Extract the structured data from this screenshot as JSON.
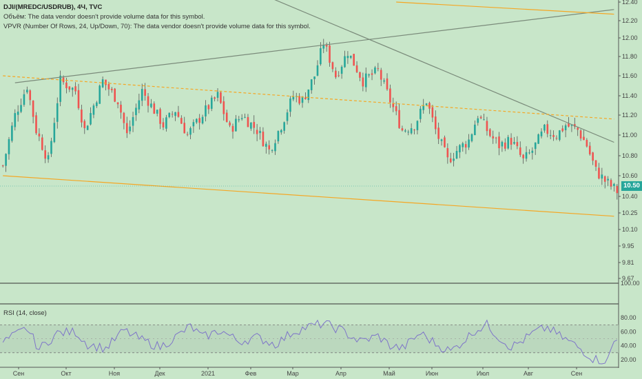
{
  "legend": {
    "title": "DJI/(MREDC/USDRUB), 4Ч, TVC",
    "volume": "Объём: The data vendor doesn't provide volume data for this symbol.",
    "vpvr": "VPVR (Number Of Rows, 24, Up/Down, 70): The data vendor doesn't provide volume data for this symbol."
  },
  "rsi_label": "RSI (14, close)",
  "last_price": "10.50",
  "colors": {
    "background": "#c8e6c9",
    "up": "#26a69a",
    "down": "#ef5350",
    "neutral": "#555555",
    "trendline": "#7a8a7a",
    "channel": "#f5a623",
    "rsi_line": "#7e74c9"
  },
  "chart_data": [
    {
      "type": "candlestick",
      "title": "DJI/(MREDC/USDRUB), 4Ч, TVC",
      "y_ticks": [
        "12.40",
        "12.20",
        "12.00",
        "11.80",
        "11.60",
        "11.40",
        "11.20",
        "11.00",
        "10.80",
        "10.60",
        "10.50",
        "10.40",
        "10.25",
        "10.10",
        "9.95",
        "9.81",
        "9.67"
      ],
      "x_ticks": [
        "Сен",
        "Окт",
        "Ноя",
        "Дек",
        "2021",
        "Фев",
        "Мар",
        "Апр",
        "Май",
        "Июн",
        "Июл",
        "Авг",
        "Сен"
      ],
      "ylim": [
        9.64,
        12.42
      ],
      "close_path_keypoints": [
        [
          0,
          10.7
        ],
        [
          4,
          11.2
        ],
        [
          8,
          11.5
        ],
        [
          11,
          11.05
        ],
        [
          15,
          10.75
        ],
        [
          19,
          11.55
        ],
        [
          24,
          11.45
        ],
        [
          27,
          11.05
        ],
        [
          33,
          11.55
        ],
        [
          38,
          11.35
        ],
        [
          41,
          11.0
        ],
        [
          46,
          11.45
        ],
        [
          53,
          11.1
        ],
        [
          57,
          11.25
        ],
        [
          61,
          11.0
        ],
        [
          67,
          11.25
        ],
        [
          71,
          11.4
        ],
        [
          75,
          11.05
        ],
        [
          79,
          11.2
        ],
        [
          84,
          11.05
        ],
        [
          88,
          10.85
        ],
        [
          92,
          11.1
        ],
        [
          96,
          11.4
        ],
        [
          99,
          11.35
        ],
        [
          103,
          11.6
        ],
        [
          106,
          11.95
        ],
        [
          110,
          11.6
        ],
        [
          114,
          11.85
        ],
        [
          119,
          11.55
        ],
        [
          124,
          11.65
        ],
        [
          128,
          11.35
        ],
        [
          132,
          11.05
        ],
        [
          136,
          11.1
        ],
        [
          140,
          11.35
        ],
        [
          143,
          11.05
        ],
        [
          147,
          10.75
        ],
        [
          150,
          10.85
        ],
        [
          154,
          10.95
        ],
        [
          157,
          11.2
        ],
        [
          161,
          11.0
        ],
        [
          164,
          10.9
        ],
        [
          168,
          10.95
        ],
        [
          172,
          10.75
        ],
        [
          175,
          10.85
        ],
        [
          179,
          11.05
        ],
        [
          183,
          11.0
        ],
        [
          186,
          11.1
        ],
        [
          190,
          11.05
        ],
        [
          193,
          10.9
        ],
        [
          196,
          10.65
        ],
        [
          199,
          10.55
        ],
        [
          201,
          10.5
        ],
        [
          203,
          10.45
        ]
      ],
      "last_value": 10.5,
      "trendlines": [
        {
          "from": [
            4,
            11.53
          ],
          "to": [
            202,
            12.32
          ],
          "style": "solid",
          "color": "trendline"
        },
        {
          "from": [
            80,
            12.56
          ],
          "to": [
            202,
            10.93
          ],
          "style": "solid",
          "color": "trendline"
        },
        {
          "from": [
            0,
            10.6
          ],
          "to": [
            202,
            10.22
          ],
          "style": "solid",
          "color": "channel"
        },
        {
          "from": [
            0,
            11.6
          ],
          "to": [
            202,
            11.16
          ],
          "style": "dashed",
          "color": "channel"
        },
        {
          "from": [
            130,
            12.4
          ],
          "to": [
            202,
            12.27
          ],
          "style": "solid",
          "color": "channel"
        }
      ]
    },
    {
      "type": "line",
      "name": "RSI (14, close)",
      "y_ticks": [
        "100.00",
        "80.00",
        "60.00",
        "40.00",
        "20.00"
      ],
      "ylim": [
        12,
        100
      ],
      "band": [
        30,
        70
      ],
      "mid": 50,
      "keypoints": [
        [
          0,
          45
        ],
        [
          8,
          65
        ],
        [
          12,
          35
        ],
        [
          18,
          58
        ],
        [
          24,
          60
        ],
        [
          28,
          42
        ],
        [
          34,
          36
        ],
        [
          40,
          62
        ],
        [
          46,
          48
        ],
        [
          52,
          38
        ],
        [
          58,
          55
        ],
        [
          62,
          68
        ],
        [
          66,
          52
        ],
        [
          72,
          62
        ],
        [
          78,
          46
        ],
        [
          84,
          52
        ],
        [
          90,
          42
        ],
        [
          96,
          60
        ],
        [
          100,
          66
        ],
        [
          106,
          72
        ],
        [
          112,
          62
        ],
        [
          118,
          46
        ],
        [
          124,
          54
        ],
        [
          128,
          40
        ],
        [
          132,
          36
        ],
        [
          138,
          58
        ],
        [
          144,
          40
        ],
        [
          148,
          32
        ],
        [
          152,
          46
        ],
        [
          156,
          62
        ],
        [
          160,
          70
        ],
        [
          164,
          52
        ],
        [
          168,
          38
        ],
        [
          172,
          48
        ],
        [
          176,
          60
        ],
        [
          180,
          66
        ],
        [
          184,
          54
        ],
        [
          188,
          44
        ],
        [
          192,
          32
        ],
        [
          195,
          22
        ],
        [
          198,
          18
        ],
        [
          200,
          20
        ],
        [
          202,
          46
        ],
        [
          203,
          48
        ]
      ]
    }
  ]
}
